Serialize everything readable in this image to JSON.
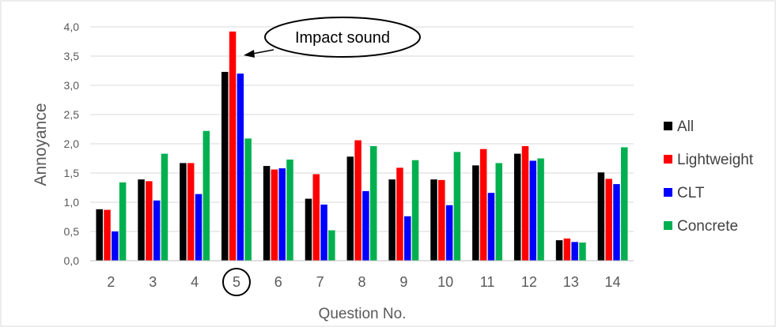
{
  "chart_data": {
    "type": "bar",
    "title": "",
    "xlabel": "Question No.",
    "ylabel": "Annoyance",
    "ylim": [
      0,
      4
    ],
    "yticks": [
      "0,0",
      "0,5",
      "1,0",
      "1,5",
      "2,0",
      "2,5",
      "3,0",
      "3,5",
      "4,0"
    ],
    "grid": true,
    "legend_position": "right",
    "categories": [
      "2",
      "3",
      "4",
      "5",
      "6",
      "7",
      "8",
      "9",
      "10",
      "11",
      "12",
      "13",
      "14"
    ],
    "series": [
      {
        "name": "All",
        "color": "#000000",
        "values": [
          0.88,
          1.39,
          1.67,
          3.23,
          1.62,
          1.06,
          1.78,
          1.39,
          1.39,
          1.63,
          1.83,
          0.35,
          1.51
        ]
      },
      {
        "name": "Lightweight",
        "color": "#ff0000",
        "values": [
          0.87,
          1.36,
          1.67,
          3.92,
          1.56,
          1.48,
          2.06,
          1.59,
          1.38,
          1.91,
          1.96,
          0.38,
          1.4
        ]
      },
      {
        "name": "CLT",
        "color": "#0000ff",
        "values": [
          0.5,
          1.03,
          1.14,
          3.2,
          1.58,
          0.96,
          1.19,
          0.76,
          0.95,
          1.16,
          1.71,
          0.32,
          1.31
        ]
      },
      {
        "name": "Concrete",
        "color": "#00b050",
        "values": [
          1.34,
          1.83,
          2.22,
          2.09,
          1.73,
          0.52,
          1.96,
          1.72,
          1.86,
          1.67,
          1.75,
          0.31,
          1.94
        ]
      }
    ],
    "annotations": [
      {
        "text": "Impact sound",
        "target_category": "5"
      }
    ],
    "highlighted_category": "5"
  }
}
